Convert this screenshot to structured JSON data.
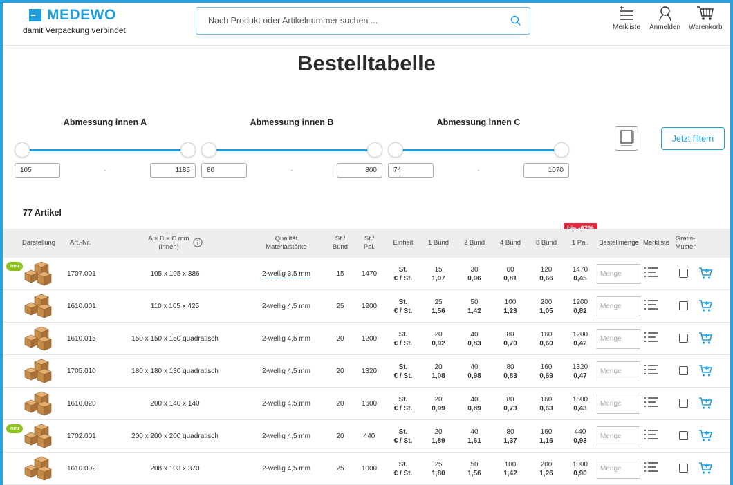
{
  "header": {
    "brand": "MEDEWO",
    "tagline": "damit Verpackung verbindet",
    "search_placeholder": "Nach Produkt oder Artikelnummer suchen ...",
    "merkliste": "Merkliste",
    "anmelden": "Anmelden",
    "warenkorb": "Warenkorb"
  },
  "page_title": "Bestelltabelle",
  "filters": [
    {
      "label": "Abmessung innen A",
      "min": "105",
      "max": "1185"
    },
    {
      "label": "Abmessung innen B",
      "min": "80",
      "max": "800"
    },
    {
      "label": "Abmessung innen C",
      "min": "74",
      "max": "1070"
    }
  ],
  "filter_button": "Jetzt filtern",
  "article_count": "77 Artikel",
  "discount_badge": "bis -62%",
  "columns": {
    "darstellung": "Darstellung",
    "artnr": "Art.-Nr.",
    "dim_1": "A × B × C mm",
    "dim_2": "(innen)",
    "qual_1": "Qualität",
    "qual_2": "Materialstärke",
    "bund_1": "St./",
    "bund_2": "Bund",
    "pal_1": "St./",
    "pal_2": "Pal.",
    "einheit": "Einheit",
    "b1": "1 Bund",
    "b2": "2 Bund",
    "b4": "4 Bund",
    "b8": "8 Bund",
    "p1": "1 Pal.",
    "menge": "Bestellmenge",
    "merk": "Merkliste",
    "gratis_1": "Gratis-",
    "gratis_2": "Muster"
  },
  "unit_top": "St.",
  "unit_bottom": "€ / St.",
  "qty_placeholder": "Menge",
  "neu_label": "neu",
  "rows": [
    {
      "neu": true,
      "artnr": "1707.001",
      "dim": "105 x 105 x 386",
      "quality": "2-wellig 3,5 mm",
      "bund": "15",
      "pal": "1470",
      "q": [
        "15",
        "30",
        "60",
        "120",
        "1470"
      ],
      "p": [
        "1,07",
        "0,96",
        "0,81",
        "0,66",
        "0,45"
      ]
    },
    {
      "neu": false,
      "artnr": "1610.001",
      "dim": "110 x 105 x 425",
      "quality": "2-wellig 4,5 mm",
      "bund": "25",
      "pal": "1200",
      "q": [
        "25",
        "50",
        "100",
        "200",
        "1200"
      ],
      "p": [
        "1,56",
        "1,42",
        "1,23",
        "1,05",
        "0,82"
      ]
    },
    {
      "neu": false,
      "artnr": "1610.015",
      "dim": "150 x 150 x 150 quadratisch",
      "quality": "2-wellig 4,5 mm",
      "bund": "20",
      "pal": "1200",
      "q": [
        "20",
        "40",
        "80",
        "160",
        "1200"
      ],
      "p": [
        "0,92",
        "0,83",
        "0,70",
        "0,60",
        "0,42"
      ]
    },
    {
      "neu": false,
      "artnr": "1705.010",
      "dim": "180 x 180 x 130 quadratisch",
      "quality": "2-wellig 4,5 mm",
      "bund": "20",
      "pal": "1320",
      "q": [
        "20",
        "40",
        "80",
        "160",
        "1320"
      ],
      "p": [
        "1,08",
        "0,98",
        "0,83",
        "0,69",
        "0,47"
      ]
    },
    {
      "neu": false,
      "artnr": "1610.020",
      "dim": "200 x 140 x 140",
      "quality": "2-wellig 4,5 mm",
      "bund": "20",
      "pal": "1600",
      "q": [
        "20",
        "40",
        "80",
        "160",
        "1600"
      ],
      "p": [
        "0,99",
        "0,89",
        "0,73",
        "0,63",
        "0,43"
      ]
    },
    {
      "neu": true,
      "artnr": "1702.001",
      "dim": "200 x 200 x 200 quadratisch",
      "quality": "2-wellig 4,5 mm",
      "bund": "20",
      "pal": "440",
      "q": [
        "20",
        "40",
        "80",
        "160",
        "440"
      ],
      "p": [
        "1,89",
        "1,61",
        "1,37",
        "1,16",
        "0,93"
      ]
    },
    {
      "neu": false,
      "artnr": "1610.002",
      "dim": "208 x 103 x 370",
      "quality": "2-wellig 4,5 mm",
      "bund": "25",
      "pal": "1000",
      "q": [
        "25",
        "50",
        "100",
        "200",
        "1000"
      ],
      "p": [
        "1,80",
        "1,56",
        "1,42",
        "1,26",
        "0,90"
      ]
    }
  ],
  "colors": {
    "accent": "#1e9fdc",
    "badge": "#e8263d",
    "neu": "#8dc21f"
  }
}
